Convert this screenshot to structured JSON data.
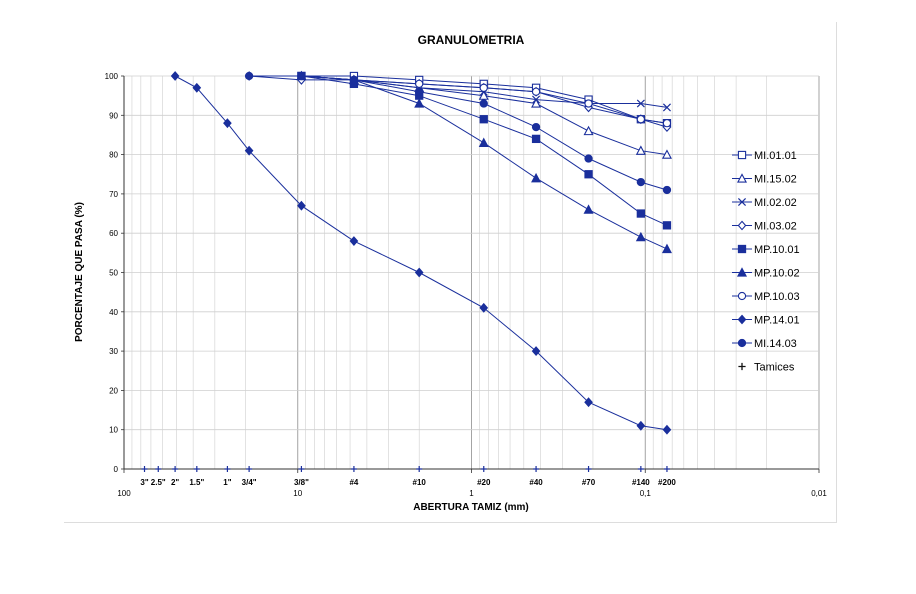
{
  "chart_data": {
    "type": "line",
    "title": "GRANULOMETRIA",
    "xlabel": "ABERTURA TAMIZ (mm)",
    "ylabel": "PORCENTAJE QUE PASA (%)",
    "xscale": "log",
    "xlim": [
      100,
      0.01
    ],
    "ylim": [
      0,
      100
    ],
    "x_major_ticks": [
      {
        "value": 100,
        "label": "100"
      },
      {
        "value": 10,
        "label": "10"
      },
      {
        "value": 1,
        "label": "1"
      },
      {
        "value": 0.1,
        "label": "0,1"
      },
      {
        "value": 0.01,
        "label": "0,01"
      }
    ],
    "y_ticks": [
      0,
      10,
      20,
      30,
      40,
      50,
      60,
      70,
      80,
      90,
      100
    ],
    "sieves": [
      {
        "label": "3\"",
        "size": 76.2
      },
      {
        "label": "2.5\"",
        "size": 63.5
      },
      {
        "label": "2\"",
        "size": 50.8
      },
      {
        "label": "1.5\"",
        "size": 38.1
      },
      {
        "label": "1\"",
        "size": 25.4
      },
      {
        "label": "3/4\"",
        "size": 19.05
      },
      {
        "label": "3/8\"",
        "size": 9.525
      },
      {
        "label": "#4",
        "size": 4.75
      },
      {
        "label": "#10",
        "size": 2.0
      },
      {
        "label": "#20",
        "size": 0.85
      },
      {
        "label": "#40",
        "size": 0.425
      },
      {
        "label": "#70",
        "size": 0.212
      },
      {
        "label": "#140",
        "size": 0.106
      },
      {
        "label": "#200",
        "size": 0.075
      }
    ],
    "series": [
      {
        "name": "MI.01.01",
        "marker": "square-open",
        "x": [
          9.525,
          4.75,
          2.0,
          0.85,
          0.425,
          0.212,
          0.106,
          0.075
        ],
        "values": [
          100,
          100,
          99,
          98,
          97,
          94,
          89,
          88
        ]
      },
      {
        "name": "MI.15.02",
        "marker": "triangle-open",
        "x": [
          9.525,
          4.75,
          2.0,
          0.85,
          0.425,
          0.212,
          0.106,
          0.075
        ],
        "values": [
          100,
          99,
          97,
          95,
          93,
          86,
          81,
          80
        ]
      },
      {
        "name": "MI.02.02",
        "marker": "x",
        "x": [
          9.525,
          4.75,
          2.0,
          0.85,
          0.425,
          0.212,
          0.106,
          0.075
        ],
        "values": [
          100,
          99,
          97,
          96,
          94,
          93,
          93,
          92
        ]
      },
      {
        "name": "MI.03.02",
        "marker": "diamond-open",
        "x": [
          19.05,
          9.525,
          4.75,
          2.0,
          0.85,
          0.425,
          0.212,
          0.106,
          0.075
        ],
        "values": [
          100,
          99,
          99,
          98,
          97,
          96,
          92,
          89,
          87
        ]
      },
      {
        "name": "MP.10.01",
        "marker": "square",
        "x": [
          9.525,
          4.75,
          2.0,
          0.85,
          0.425,
          0.212,
          0.106,
          0.075
        ],
        "values": [
          100,
          98,
          95,
          89,
          84,
          75,
          65,
          62
        ]
      },
      {
        "name": "MP.10.02",
        "marker": "triangle",
        "x": [
          9.525,
          4.75,
          2.0,
          0.85,
          0.425,
          0.212,
          0.106,
          0.075
        ],
        "values": [
          100,
          99,
          93,
          83,
          74,
          66,
          59,
          56
        ]
      },
      {
        "name": "MP.10.03",
        "marker": "circle-open",
        "x": [
          9.525,
          4.75,
          2.0,
          0.85,
          0.425,
          0.212,
          0.106,
          0.075
        ],
        "values": [
          100,
          99,
          98,
          97,
          96,
          93,
          89,
          88
        ]
      },
      {
        "name": "MP.14.01",
        "marker": "diamond",
        "x": [
          50.8,
          38.1,
          25.4,
          19.05,
          9.525,
          4.75,
          2.0,
          0.85,
          0.425,
          0.212,
          0.106,
          0.075
        ],
        "values": [
          100,
          97,
          88,
          81,
          67,
          58,
          50,
          41,
          30,
          17,
          11,
          10
        ]
      },
      {
        "name": "MI.14.03",
        "marker": "circle",
        "x": [
          19.05,
          9.525,
          4.75,
          2.0,
          0.85,
          0.425,
          0.212,
          0.106,
          0.075
        ],
        "values": [
          100,
          100,
          99,
          96,
          93,
          87,
          79,
          73,
          71
        ]
      }
    ],
    "legend_extra": {
      "name": "Tamices",
      "marker": "plus"
    },
    "legend": "right",
    "grid": true,
    "color": "#1a2f9c"
  }
}
